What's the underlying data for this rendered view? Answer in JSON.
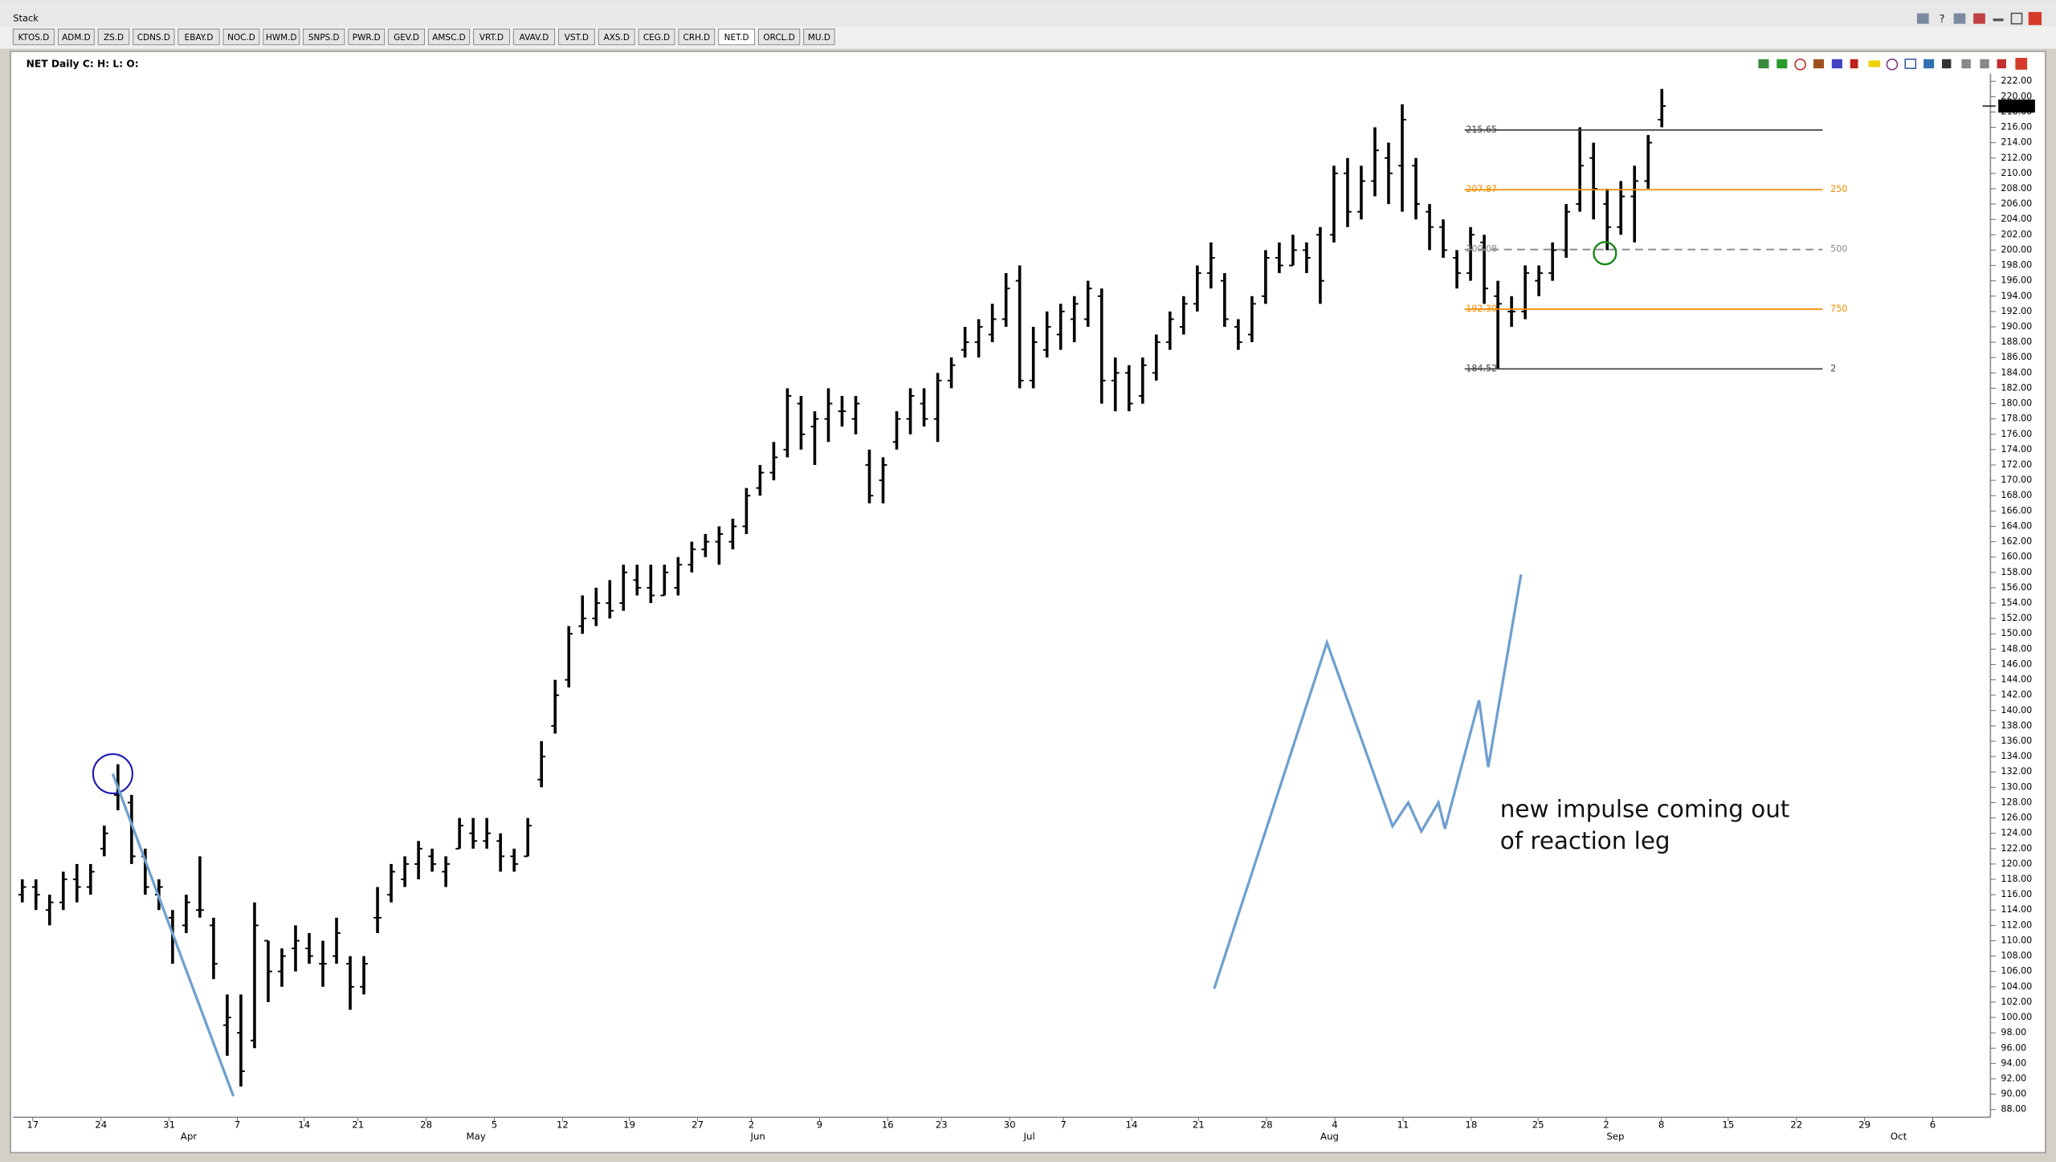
{
  "window": {
    "title": "Stack"
  },
  "tabs": [
    "KTOS.D",
    "ADM.D",
    "ZS.D",
    "CDNS.D",
    "EBAY.D",
    "NOC.D",
    "HWM.D",
    "SNPS.D",
    "PWR.D",
    "GEV.D",
    "AMSC.D",
    "VRT.D",
    "AVAV.D",
    "VST.D",
    "AXS.D",
    "CEG.D",
    "CRH.D",
    "NET.D",
    "ORCL.D",
    "MU.D"
  ],
  "active_tab": 17,
  "chart_data": {
    "type": "ohlc",
    "title": "NET Daily C: H: L: O:",
    "color": "#000000",
    "high": [
      118,
      118,
      116,
      119,
      120,
      120,
      125,
      133,
      129,
      122,
      118,
      114,
      116,
      121,
      113,
      103,
      103,
      115,
      110,
      109,
      112,
      111,
      110,
      113,
      108,
      108,
      117,
      120,
      121,
      123,
      122,
      121,
      126,
      126,
      126,
      124,
      122,
      126,
      136,
      144,
      151,
      155,
      156,
      157,
      159,
      159,
      159,
      159,
      160,
      162,
      163,
      164,
      165,
      169,
      172,
      175,
      182,
      181,
      179,
      182,
      181,
      181,
      174,
      173,
      179,
      182,
      182,
      184,
      186,
      190,
      191,
      193,
      197,
      198,
      190,
      192,
      193,
      194,
      196,
      195,
      186,
      185,
      186,
      189,
      192,
      194,
      198,
      201,
      197,
      191,
      194,
      200,
      201,
      202,
      201,
      203,
      211,
      212,
      211,
      216,
      214,
      219,
      212,
      206,
      204,
      200,
      203,
      202,
      196,
      194,
      198,
      198,
      201,
      206,
      216,
      214,
      208,
      209,
      211,
      215,
      221
    ],
    "low": [
      115,
      114,
      112,
      114,
      115,
      116,
      121,
      127,
      120,
      116,
      114,
      107,
      111,
      113,
      105,
      95,
      91,
      96,
      102,
      104,
      106,
      107,
      104,
      107,
      101,
      103,
      111,
      115,
      117,
      118,
      119,
      117,
      122,
      122,
      122,
      119,
      119,
      121,
      130,
      137,
      143,
      150,
      151,
      152,
      153,
      155,
      154,
      155,
      155,
      158,
      160,
      159,
      161,
      163,
      168,
      170,
      173,
      174,
      172,
      175,
      177,
      176,
      167,
      167,
      174,
      176,
      177,
      175,
      182,
      186,
      186,
      188,
      190,
      182,
      182,
      186,
      187,
      188,
      190,
      180,
      179,
      179,
      180,
      183,
      187,
      189,
      192,
      195,
      190,
      187,
      188,
      193,
      197,
      198,
      197,
      193,
      201,
      203,
      204,
      207,
      206,
      205,
      204,
      200,
      199,
      195,
      196,
      193,
      184.52,
      190,
      191,
      194,
      196,
      199,
      205,
      204,
      200,
      202,
      201,
      208,
      216
    ],
    "open": [
      116,
      117,
      114,
      115,
      118,
      117,
      122,
      129,
      128,
      121,
      116,
      113,
      112,
      114,
      112,
      99,
      98,
      97,
      110,
      106,
      109,
      109,
      107,
      108,
      107,
      104,
      113,
      116,
      118,
      120,
      121,
      119,
      122,
      124,
      123,
      123,
      121,
      121,
      131,
      138,
      144,
      151,
      152,
      154,
      154,
      157,
      156,
      155,
      156,
      159,
      161,
      162,
      162,
      164,
      169,
      171,
      174,
      180,
      177,
      178,
      179,
      178,
      172,
      170,
      175,
      178,
      180,
      178,
      183,
      187,
      188,
      189,
      191,
      196,
      183,
      187,
      189,
      191,
      191,
      194,
      183,
      184,
      181,
      184,
      188,
      190,
      193,
      197,
      196,
      190,
      189,
      194,
      199,
      198,
      200,
      202,
      202,
      210,
      205,
      209,
      212,
      211,
      211,
      205,
      203,
      199,
      197,
      201,
      194,
      192,
      192,
      196,
      197,
      200,
      206,
      212,
      206,
      203,
      207,
      209,
      217
    ],
    "close": [
      117,
      116,
      115,
      118,
      117,
      119,
      124,
      129,
      121,
      117,
      117,
      110,
      115,
      114,
      107,
      100,
      93,
      112,
      106,
      108,
      110,
      108,
      107,
      111,
      104,
      107,
      113,
      119,
      120,
      122,
      120,
      120,
      125,
      123,
      124,
      121,
      120,
      125,
      134,
      142,
      150,
      152,
      154,
      153,
      158,
      156,
      155,
      158,
      159,
      161,
      162,
      163,
      164,
      168,
      171,
      173,
      181,
      176,
      178,
      180,
      179,
      180,
      168,
      172,
      178,
      181,
      178,
      183,
      185,
      188,
      190,
      191,
      195,
      183,
      188,
      190,
      192,
      193,
      195,
      183,
      184,
      180,
      185,
      188,
      191,
      193,
      197,
      199,
      191,
      188,
      193,
      199,
      198,
      200,
      199,
      196,
      210,
      205,
      209,
      213,
      210,
      217,
      206,
      203,
      200,
      197,
      202,
      195,
      193,
      192,
      197,
      197,
      200,
      205,
      211,
      208,
      203,
      207,
      209,
      214,
      218.77
    ],
    "ylim": [
      87,
      223
    ],
    "yticks": [
      {
        "value": 88,
        "label": "88.00"
      },
      {
        "value": 90,
        "label": "90.00"
      },
      {
        "value": 92,
        "label": "92.00"
      },
      {
        "value": 94,
        "label": "94.00"
      },
      {
        "value": 96,
        "label": "96.00"
      },
      {
        "value": 98,
        "label": "98.00"
      },
      {
        "value": 100,
        "label": "100.00"
      },
      {
        "value": 102,
        "label": "102.00"
      },
      {
        "value": 104,
        "label": "104.00"
      },
      {
        "value": 106,
        "label": "106.00"
      },
      {
        "value": 108,
        "label": "108.00"
      },
      {
        "value": 110,
        "label": "110.00"
      },
      {
        "value": 112,
        "label": "112.00"
      },
      {
        "value": 114,
        "label": "114.00"
      },
      {
        "value": 116,
        "label": "116.00"
      },
      {
        "value": 118,
        "label": "118.00"
      },
      {
        "value": 120,
        "label": "120.00"
      },
      {
        "value": 122,
        "label": "122.00"
      },
      {
        "value": 124,
        "label": "124.00"
      },
      {
        "value": 126,
        "label": "126.00"
      },
      {
        "value": 128,
        "label": "128.00"
      },
      {
        "value": 130,
        "label": "130.00"
      },
      {
        "value": 132,
        "label": "132.00"
      },
      {
        "value": 134,
        "label": "134.00"
      },
      {
        "value": 136,
        "label": "136.00"
      },
      {
        "value": 138,
        "label": "138.00"
      },
      {
        "value": 140,
        "label": "140.00"
      },
      {
        "value": 142,
        "label": "142.00"
      },
      {
        "value": 144,
        "label": "144.00"
      },
      {
        "value": 146,
        "label": "146.00"
      },
      {
        "value": 148,
        "label": "148.00"
      },
      {
        "value": 150,
        "label": "150.00"
      },
      {
        "value": 152,
        "label": "152.00"
      },
      {
        "value": 154,
        "label": "154.00"
      },
      {
        "value": 156,
        "label": "156.00"
      },
      {
        "value": 158,
        "label": "158.00"
      },
      {
        "value": 160,
        "label": "160.00"
      },
      {
        "value": 162,
        "label": "162.00"
      },
      {
        "value": 164,
        "label": "164.00"
      },
      {
        "value": 166,
        "label": "166.00"
      },
      {
        "value": 168,
        "label": "168.00"
      },
      {
        "value": 170,
        "label": "170.00"
      },
      {
        "value": 172,
        "label": "172.00"
      },
      {
        "value": 174,
        "label": "174.00"
      },
      {
        "value": 176,
        "label": "176.00"
      },
      {
        "value": 178,
        "label": "178.00"
      },
      {
        "value": 180,
        "label": "180.00"
      },
      {
        "value": 182,
        "label": "182.00"
      },
      {
        "value": 184,
        "label": "184.00"
      },
      {
        "value": 186,
        "label": "186.00"
      },
      {
        "value": 188,
        "label": "188.00"
      },
      {
        "value": 190,
        "label": "190.00"
      },
      {
        "value": 192,
        "label": "192.00"
      },
      {
        "value": 194,
        "label": "194.00"
      },
      {
        "value": 196,
        "label": "196.00"
      },
      {
        "value": 198,
        "label": "198.00"
      },
      {
        "value": 200,
        "label": "200.00"
      },
      {
        "value": 202,
        "label": "202.00"
      },
      {
        "value": 204,
        "label": "204.00"
      },
      {
        "value": 206,
        "label": "206.00"
      },
      {
        "value": 208,
        "label": "208.00"
      },
      {
        "value": 210,
        "label": "210.00"
      },
      {
        "value": 212,
        "label": "212.00"
      },
      {
        "value": 214,
        "label": "214.00"
      },
      {
        "value": 216,
        "label": "216.00"
      },
      {
        "value": 218,
        "label": "218.00"
      },
      {
        "value": 220,
        "label": "220.00"
      },
      {
        "value": 222,
        "label": "222.00"
      }
    ],
    "xtick_labels": [
      "17",
      "24",
      "31",
      "7",
      "14",
      "21",
      "28",
      "5",
      "12",
      "19",
      "27",
      "2",
      "9",
      "16",
      "23",
      "30",
      "7",
      "14",
      "21",
      "28",
      "4",
      "11",
      "18",
      "25",
      "2",
      "8",
      "15",
      "22",
      "29",
      "6"
    ],
    "month_labels": [
      "Apr",
      "May",
      "Jun",
      "Jul",
      "Aug",
      "Sep",
      "Oct"
    ],
    "fib_levels": [
      {
        "value": 215.65,
        "label": "215.65",
        "color": "#444444"
      },
      {
        "value": 207.87,
        "label": "207.87",
        "ratio": "250",
        "color": "#f28c00"
      },
      {
        "value": 200.08,
        "label": "200.08",
        "ratio": "500",
        "color": "#888888",
        "dashed": true
      },
      {
        "value": 192.3,
        "label": "192.30",
        "ratio": "750",
        "color": "#f28c00"
      },
      {
        "value": 184.52,
        "label": "184.52",
        "ratio": "2",
        "color": "#444444"
      }
    ],
    "annotation": [
      "new impulse coming out",
      "of reaction leg"
    ]
  }
}
